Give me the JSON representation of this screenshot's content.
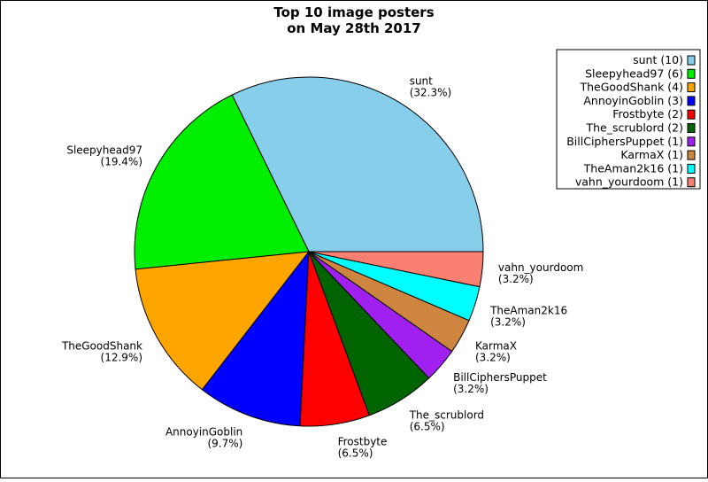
{
  "chart_data": {
    "type": "pie",
    "title_lines": [
      "Top 10 image posters",
      "on May 28th 2017"
    ],
    "slices": [
      {
        "label": "sunt",
        "value": 10,
        "pct_label": "(32.3%)",
        "legend": "sunt (10)",
        "color": "#87CEEB"
      },
      {
        "label": "Sleepyhead97",
        "value": 6,
        "pct_label": "(19.4%)",
        "legend": "Sleepyhead97 (6)",
        "color": "#00EE00"
      },
      {
        "label": "TheGoodShank",
        "value": 4,
        "pct_label": "(12.9%)",
        "legend": "TheGoodShank (4)",
        "color": "#FFA500"
      },
      {
        "label": "AnnoyinGoblin",
        "value": 3,
        "pct_label": "(9.7%)",
        "legend": "AnnoyinGoblin (3)",
        "color": "#0000FF"
      },
      {
        "label": "Frostbyte",
        "value": 2,
        "pct_label": "(6.5%)",
        "legend": "Frostbyte (2)",
        "color": "#FF0000"
      },
      {
        "label": "The_scrublord",
        "value": 2,
        "pct_label": "(6.5%)",
        "legend": "The_scrublord (2)",
        "color": "#006400"
      },
      {
        "label": "BillCiphersPuppet",
        "value": 1,
        "pct_label": "(3.2%)",
        "legend": "BillCiphersPuppet (1)",
        "color": "#A020F0"
      },
      {
        "label": "KarmaX",
        "value": 1,
        "pct_label": "(3.2%)",
        "legend": "KarmaX (1)",
        "color": "#CD853F"
      },
      {
        "label": "TheAman2k16",
        "value": 1,
        "pct_label": "(3.2%)",
        "legend": "TheAman2k16 (1)",
        "color": "#00FFFF"
      },
      {
        "label": "vahn_yourdoom",
        "value": 1,
        "pct_label": "(3.2%)",
        "legend": "vahn_yourdoom (1)",
        "color": "#FA8072"
      }
    ],
    "legend_position": "top-right"
  }
}
